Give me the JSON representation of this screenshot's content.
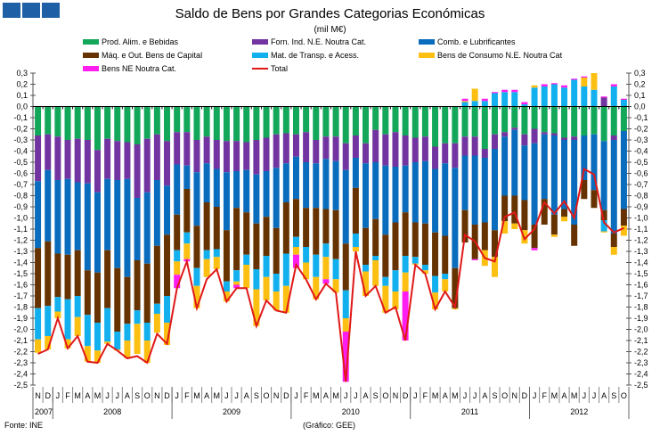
{
  "chart_data": {
    "type": "bar",
    "stacked": true,
    "title": "Saldo de Bens por Grandes Categorias Económicas",
    "subtitle": "(mil M€)",
    "xlabel": "",
    "ylabel": "",
    "ylim": [
      -2.5,
      0.3
    ],
    "yticks": [
      "0,3",
      "0,2",
      "0,1",
      "0,0",
      "-0,1",
      "-0,2",
      "-0,3",
      "-0,4",
      "-0,5",
      "-0,6",
      "-0,7",
      "-0,8",
      "-0,9",
      "-1,0",
      "-1,1",
      "-1,2",
      "-1,3",
      "-1,4",
      "-1,5",
      "-1,6",
      "-1,7",
      "-1,8",
      "-1,9",
      "-2,0",
      "-2,1",
      "-2,2",
      "-2,3",
      "-2,4",
      "-2,5"
    ],
    "categories": [
      "N",
      "D",
      "J",
      "F",
      "M",
      "A",
      "M",
      "J",
      "J",
      "A",
      "S",
      "O",
      "N",
      "D",
      "J",
      "F",
      "M",
      "A",
      "M",
      "J",
      "J",
      "A",
      "S",
      "O",
      "N",
      "D",
      "J",
      "F",
      "M",
      "A",
      "M",
      "J",
      "J",
      "A",
      "S",
      "O",
      "N",
      "D",
      "J",
      "F",
      "M",
      "A",
      "M",
      "J",
      "J",
      "A",
      "S",
      "O",
      "N",
      "D",
      "J",
      "F",
      "M",
      "A",
      "M",
      "J",
      "J",
      "A",
      "S",
      "O"
    ],
    "years": [
      {
        "label": "2007",
        "start": 0,
        "count": 2
      },
      {
        "label": "2008",
        "start": 2,
        "count": 12
      },
      {
        "label": "2009",
        "start": 14,
        "count": 12
      },
      {
        "label": "2010",
        "start": 26,
        "count": 12
      },
      {
        "label": "2011",
        "start": 38,
        "count": 12
      },
      {
        "label": "2012",
        "start": 50,
        "count": 10
      }
    ],
    "legend_position": "top",
    "series": [
      {
        "name": "Prod. Alim. e Bebidas",
        "color": "#13a75a",
        "values": [
          -0.26,
          -0.25,
          -0.27,
          -0.3,
          -0.29,
          -0.3,
          -0.39,
          -0.29,
          -0.31,
          -0.32,
          -0.34,
          -0.29,
          -0.25,
          -0.31,
          -0.23,
          -0.23,
          -0.3,
          -0.27,
          -0.3,
          -0.31,
          -0.31,
          -0.32,
          -0.3,
          -0.28,
          -0.25,
          -0.24,
          -0.25,
          -0.23,
          -0.3,
          -0.27,
          -0.27,
          -0.33,
          -0.26,
          -0.33,
          -0.21,
          -0.25,
          -0.23,
          -0.26,
          -0.28,
          -0.27,
          -0.36,
          -0.33,
          -0.33,
          -0.27,
          -0.27,
          -0.38,
          -0.25,
          -0.23,
          -0.19,
          -0.25,
          -0.2,
          -0.23,
          -0.24,
          -0.28,
          -0.27,
          -0.26,
          -0.25,
          -0.31,
          -0.26,
          -0.22
        ]
      },
      {
        "name": "Forn. Ind. N.E. Noutra Cat.",
        "color": "#7234a0",
        "values": [
          -0.41,
          -0.32,
          -0.39,
          -0.35,
          -0.39,
          -0.39,
          -0.38,
          -0.36,
          -0.35,
          -0.33,
          -0.48,
          -0.48,
          -0.41,
          -0.4,
          -0.29,
          -0.3,
          -0.29,
          -0.24,
          -0.26,
          -0.28,
          -0.27,
          -0.25,
          -0.31,
          -0.3,
          -0.3,
          -0.27,
          -0.2,
          -0.27,
          -0.21,
          -0.2,
          -0.22,
          -0.24,
          -0.2,
          -0.18,
          -0.29,
          -0.28,
          -0.31,
          -0.27,
          -0.22,
          -0.22,
          -0.2,
          -0.18,
          -0.22,
          -0.17,
          -0.17,
          -0.08,
          -0.13,
          -0.04,
          -0.02,
          -0.1,
          -0.13,
          -0.02,
          -0.02,
          -0.02,
          -0.03,
          0,
          0,
          0.08,
          -0.04,
          0
        ]
      },
      {
        "name": "Comb. e Lubrificantes",
        "color": "#0a6cbd",
        "values": [
          -0.6,
          -0.64,
          -0.66,
          -0.68,
          -0.61,
          -0.78,
          -0.72,
          -0.64,
          -0.79,
          -0.88,
          -0.56,
          -0.64,
          -0.59,
          -0.44,
          -0.45,
          -0.21,
          -0.48,
          -0.35,
          -0.34,
          -0.52,
          -0.33,
          -0.38,
          -0.44,
          -0.41,
          -0.54,
          -0.35,
          -0.38,
          -0.41,
          -0.4,
          -0.45,
          -0.44,
          -0.66,
          -0.27,
          -0.58,
          -0.51,
          -0.62,
          -0.5,
          -0.42,
          -0.54,
          -0.56,
          -0.57,
          -0.65,
          -0.9,
          -0.49,
          -0.62,
          -0.58,
          -0.73,
          -0.53,
          -0.59,
          -0.49,
          -0.73,
          -0.58,
          -0.71,
          -0.62,
          -0.76,
          -0.4,
          -0.5,
          -0.62,
          -0.84,
          -0.7
        ]
      },
      {
        "name": "Máq. e Out. Bens de Capital",
        "color": "#663300",
        "values": [
          -0.54,
          -0.58,
          -0.39,
          -0.4,
          -0.41,
          -0.4,
          -0.45,
          -0.52,
          -0.57,
          -0.42,
          -0.45,
          -0.53,
          -0.52,
          -0.55,
          -0.32,
          -0.39,
          -0.38,
          -0.43,
          -0.38,
          -0.46,
          -0.56,
          -0.38,
          -0.41,
          -0.35,
          -0.41,
          -0.46,
          -0.34,
          -0.35,
          -0.42,
          -0.31,
          -0.44,
          -0.42,
          -0.41,
          -0.33,
          -0.33,
          -0.38,
          -0.43,
          -0.39,
          -0.31,
          -0.37,
          -0.39,
          -0.34,
          -0.36,
          -0.29,
          -0.31,
          -0.25,
          -0.24,
          -0.23,
          -0.25,
          -0.27,
          -0.21,
          -0.23,
          -0.18,
          -0.07,
          -0.19,
          -0.17,
          -0.16,
          -0.09,
          -0.12,
          -0.15
        ]
      },
      {
        "name": "Mat. de Transp. e Acess.",
        "color": "#12b0ee",
        "values": [
          -0.28,
          -0.27,
          -0.13,
          -0.36,
          -0.19,
          -0.28,
          -0.25,
          -0.3,
          -0.16,
          -0.15,
          -0.12,
          -0.16,
          -0.09,
          -0.24,
          -0.1,
          -0.1,
          -0.16,
          -0.08,
          -0.07,
          -0.09,
          -0.1,
          -0.09,
          -0.18,
          -0.19,
          -0.16,
          -0.29,
          -0.09,
          -0.14,
          -0.2,
          -0.12,
          -0.18,
          -0.25,
          -0.12,
          -0.06,
          -0.04,
          -0.08,
          -0.19,
          -0.15,
          -0.06,
          -0.05,
          -0.15,
          -0.05,
          0,
          0.04,
          0.05,
          0.05,
          0.12,
          0.13,
          0.13,
          0.02,
          0.17,
          0.18,
          0.2,
          0.17,
          0.24,
          0.18,
          0.15,
          -0.1,
          0.18,
          0.06
        ]
      },
      {
        "name": "Bens de Consumo N.E. Noutra Cat",
        "color": "#fcbf12",
        "values": [
          -0.12,
          -0.12,
          -0.06,
          -0.08,
          -0.17,
          -0.14,
          -0.11,
          -0.02,
          -0.01,
          -0.16,
          -0.27,
          -0.2,
          -0.17,
          -0.2,
          -0.12,
          -0.14,
          -0.2,
          -0.16,
          -0.11,
          -0.09,
          -0.03,
          -0.21,
          -0.33,
          -0.21,
          -0.17,
          -0.24,
          -0.07,
          -0.15,
          -0.2,
          -0.2,
          -0.12,
          -0.12,
          -0.04,
          -0.22,
          -0.23,
          -0.24,
          -0.16,
          -0.17,
          -0.01,
          -0.03,
          -0.15,
          -0.11,
          -0.01,
          0.01,
          0.11,
          -0.14,
          -0.18,
          -0.11,
          -0.05,
          -0.12,
          0.02,
          0,
          -0.02,
          -0.04,
          0,
          0.08,
          0.15,
          -0.01,
          -0.07,
          -0.09
        ]
      },
      {
        "name": "Bens NE Noutra Cat.",
        "color": "#ff1ef0",
        "values": [
          0,
          0,
          0,
          0,
          0,
          0,
          0,
          0,
          0,
          0,
          0,
          0,
          0,
          0,
          -0.12,
          -0.02,
          0,
          0,
          0,
          0,
          -0.03,
          0,
          0,
          0,
          0,
          0,
          -0.12,
          0,
          0,
          -0.04,
          0,
          -0.45,
          0,
          0,
          0,
          0,
          0,
          -0.44,
          0,
          0,
          0,
          0,
          0,
          0.02,
          -0.01,
          0.02,
          0.01,
          0.02,
          0.02,
          0.02,
          -0.02,
          0.02,
          0.01,
          0.02,
          0.01,
          0.01,
          0,
          0.01,
          0.02,
          0.01
        ]
      },
      {
        "name": "Total",
        "color": "#e01818",
        "type": "line",
        "values": [
          -2.22,
          -2.18,
          -1.9,
          -2.17,
          -2.06,
          -2.29,
          -2.3,
          -2.13,
          -2.19,
          -2.26,
          -2.24,
          -2.3,
          -2.04,
          -2.13,
          -1.63,
          -1.39,
          -1.81,
          -1.55,
          -1.46,
          -1.75,
          -1.63,
          -1.63,
          -1.97,
          -1.74,
          -1.83,
          -1.85,
          -1.42,
          -1.55,
          -1.73,
          -1.59,
          -1.67,
          -2.47,
          -1.3,
          -1.7,
          -1.61,
          -1.85,
          -1.8,
          -2.1,
          -1.42,
          -1.5,
          -1.82,
          -1.66,
          -1.8,
          -1.15,
          -1.21,
          -1.36,
          -1.39,
          -0.99,
          -0.95,
          -1.19,
          -1.1,
          -0.86,
          -0.96,
          -0.85,
          -1.0,
          -0.56,
          -0.61,
          -1.04,
          -1.13,
          -1.09
        ]
      }
    ]
  },
  "footer": {
    "source": "Fonte: INE",
    "credit": "(Gráfico: GEE)"
  }
}
